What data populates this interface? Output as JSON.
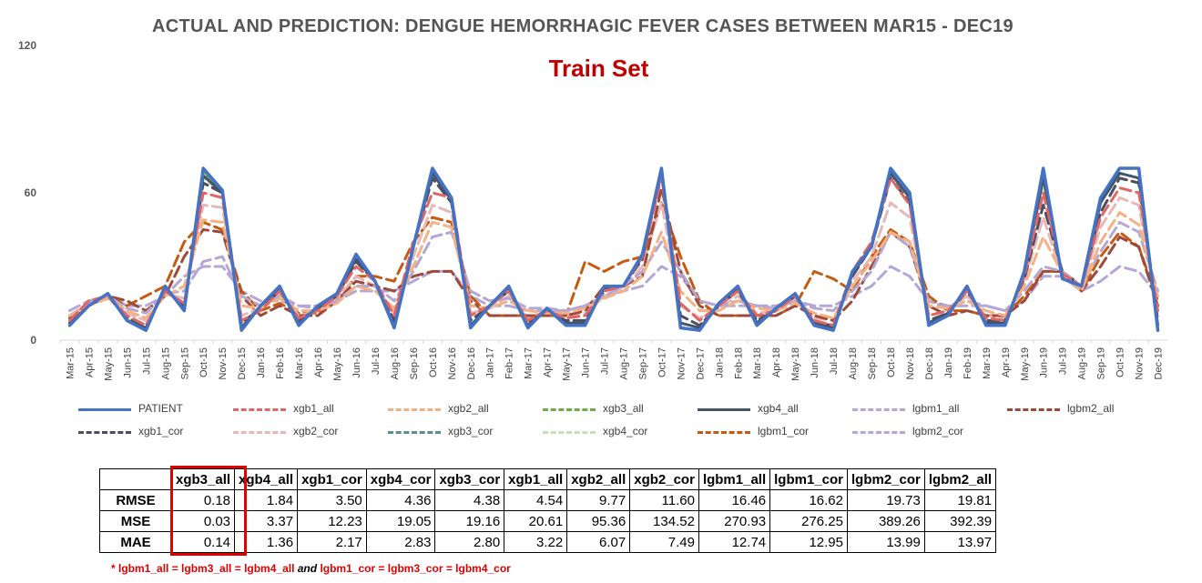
{
  "title": "ACTUAL AND PREDICTION: DENGUE HEMORRHAGIC FEVER CASES BETWEEN MAR15 - DEC19",
  "subtitle": "Train Set",
  "chart_data": {
    "type": "line",
    "title": "ACTUAL AND PREDICTION: DENGUE HEMORRHAGIC FEVER CASES BETWEEN MAR15 - DEC19",
    "ylim": [
      0,
      120
    ],
    "yticks": [
      "0",
      "60",
      "120"
    ],
    "grid": false,
    "legend_position": "bottom",
    "x": [
      "Mar-15",
      "Apr-15",
      "May-15",
      "Jun-15",
      "Jul-15",
      "Aug-15",
      "Sep-15",
      "Oct-15",
      "Nov-15",
      "Dec-15",
      "Jan-16",
      "Feb-16",
      "Mar-16",
      "Apr-16",
      "May-16",
      "Jun-16",
      "Jul-16",
      "Aug-16",
      "Sep-16",
      "Oct-16",
      "Nov-16",
      "Dec-16",
      "Jan-17",
      "Feb-17",
      "Mar-17",
      "Apr-17",
      "May-17",
      "Jun-17",
      "Jul-17",
      "Aug-17",
      "Sep-17",
      "Oct-17",
      "Nov-17",
      "Dec-17",
      "Jan-18",
      "Feb-18",
      "Mar-18",
      "Apr-18",
      "May-18",
      "Jun-18",
      "Jul-18",
      "Aug-18",
      "Sep-18",
      "Oct-18",
      "Nov-18",
      "Dec-18",
      "Jan-19",
      "Feb-19",
      "Mar-19",
      "Apr-19",
      "May-19",
      "Jun-19",
      "Jul-19",
      "Aug-19",
      "Sep-19",
      "Oct-19",
      "Nov-19",
      "Dec-19"
    ],
    "series": [
      {
        "name": "PATIENT",
        "color": "#4472c4",
        "dash": "solid",
        "width": 3.5,
        "values": [
          6,
          14,
          19,
          8,
          4,
          22,
          12,
          70,
          61,
          4,
          14,
          22,
          6,
          14,
          19,
          35,
          24,
          5,
          38,
          70,
          58,
          5,
          14,
          22,
          5,
          13,
          6,
          6,
          22,
          22,
          35,
          70,
          5,
          4,
          15,
          22,
          6,
          13,
          19,
          6,
          4,
          28,
          38,
          70,
          60,
          6,
          10,
          22,
          6,
          6,
          28,
          70,
          25,
          22,
          58,
          70,
          70,
          4
        ]
      },
      {
        "name": "xgb1_all",
        "color": "#e06666",
        "dash": "dashed",
        "width": 3,
        "values": [
          8,
          16,
          18,
          10,
          6,
          20,
          15,
          60,
          58,
          8,
          12,
          20,
          9,
          12,
          18,
          30,
          24,
          10,
          40,
          60,
          58,
          10,
          14,
          20,
          8,
          12,
          9,
          10,
          20,
          22,
          34,
          66,
          15,
          8,
          14,
          20,
          10,
          12,
          18,
          8,
          6,
          28,
          40,
          66,
          55,
          10,
          12,
          20,
          9,
          8,
          26,
          60,
          27,
          22,
          50,
          62,
          60,
          12
        ]
      },
      {
        "name": "xgb2_all",
        "color": "#f4b183",
        "dash": "dashed",
        "width": 3,
        "values": [
          10,
          14,
          17,
          12,
          9,
          18,
          22,
          49,
          48,
          14,
          13,
          17,
          12,
          12,
          15,
          22,
          20,
          13,
          30,
          48,
          46,
          14,
          13,
          16,
          12,
          11,
          11,
          13,
          17,
          20,
          26,
          44,
          20,
          12,
          12,
          16,
          13,
          12,
          15,
          11,
          9,
          22,
          32,
          44,
          40,
          14,
          13,
          16,
          12,
          10,
          22,
          42,
          27,
          20,
          40,
          52,
          47,
          18
        ]
      },
      {
        "name": "xgb3_all",
        "color": "#70ad47",
        "dash": "dashed",
        "width": 3,
        "values": [
          6,
          14,
          19,
          8,
          4,
          22,
          12,
          69,
          61,
          4,
          14,
          22,
          6,
          14,
          19,
          35,
          24,
          5,
          38,
          70,
          58,
          5,
          14,
          22,
          5,
          13,
          6,
          6,
          22,
          22,
          35,
          70,
          5,
          4,
          15,
          22,
          6,
          13,
          19,
          6,
          4,
          28,
          38,
          70,
          60,
          6,
          10,
          22,
          6,
          6,
          28,
          70,
          25,
          22,
          58,
          70,
          70,
          4
        ]
      },
      {
        "name": "xgb4_all",
        "color": "#44546a",
        "dash": "solid",
        "width": 3,
        "values": [
          6,
          14,
          19,
          8,
          5,
          21,
          13,
          67,
          60,
          5,
          14,
          21,
          7,
          13,
          19,
          33,
          24,
          6,
          38,
          68,
          57,
          6,
          14,
          21,
          6,
          13,
          7,
          7,
          21,
          22,
          34,
          69,
          7,
          5,
          14,
          21,
          7,
          13,
          18,
          7,
          5,
          27,
          38,
          68,
          58,
          7,
          11,
          21,
          7,
          7,
          27,
          66,
          26,
          22,
          56,
          68,
          66,
          6
        ]
      },
      {
        "name": "lgbm1_all",
        "color": "#b4a7d6",
        "dash": "dashed",
        "width": 3,
        "values": [
          10,
          15,
          18,
          13,
          11,
          19,
          20,
          32,
          34,
          18,
          14,
          18,
          14,
          13,
          16,
          22,
          22,
          16,
          28,
          42,
          44,
          20,
          16,
          17,
          13,
          13,
          12,
          14,
          18,
          22,
          28,
          40,
          28,
          16,
          14,
          16,
          14,
          13,
          16,
          13,
          12,
          20,
          28,
          44,
          38,
          16,
          13,
          16,
          14,
          12,
          20,
          30,
          28,
          22,
          36,
          48,
          44,
          20
        ]
      },
      {
        "name": "lgbm2_all",
        "color": "#9e4a3b",
        "dash": "dashed",
        "width": 3,
        "values": [
          9,
          14,
          18,
          16,
          12,
          18,
          34,
          45,
          44,
          18,
          10,
          14,
          10,
          10,
          16,
          24,
          22,
          20,
          26,
          28,
          28,
          16,
          10,
          10,
          10,
          10,
          10,
          12,
          22,
          22,
          26,
          62,
          28,
          14,
          10,
          10,
          10,
          10,
          14,
          10,
          8,
          16,
          30,
          44,
          38,
          14,
          10,
          12,
          10,
          10,
          16,
          28,
          28,
          20,
          30,
          42,
          38,
          14
        ]
      },
      {
        "name": "xgb1_cor",
        "color": "#4d4d60",
        "dash": "dashed",
        "width": 3,
        "values": [
          7,
          14,
          18,
          9,
          6,
          20,
          14,
          64,
          60,
          7,
          13,
          20,
          8,
          13,
          18,
          32,
          24,
          8,
          38,
          66,
          56,
          8,
          14,
          20,
          7,
          12,
          8,
          8,
          20,
          22,
          33,
          68,
          10,
          6,
          14,
          20,
          8,
          12,
          18,
          7,
          6,
          26,
          38,
          66,
          56,
          8,
          11,
          20,
          8,
          8,
          25,
          55,
          28,
          22,
          52,
          66,
          64,
          8
        ]
      },
      {
        "name": "xgb2_cor",
        "color": "#e6b8b7",
        "dash": "dashed",
        "width": 3,
        "values": [
          9,
          15,
          17,
          11,
          8,
          19,
          17,
          55,
          54,
          10,
          13,
          19,
          10,
          12,
          17,
          26,
          22,
          11,
          34,
          55,
          52,
          11,
          13,
          18,
          9,
          12,
          10,
          11,
          18,
          21,
          30,
          56,
          14,
          9,
          13,
          18,
          11,
          12,
          17,
          9,
          8,
          24,
          34,
          56,
          50,
          10,
          12,
          18,
          10,
          9,
          24,
          50,
          26,
          21,
          46,
          58,
          55,
          12
        ]
      },
      {
        "name": "xgb3_cor",
        "color": "#5b8f8f",
        "dash": "dashed",
        "width": 3,
        "values": [
          6,
          14,
          19,
          8,
          4,
          22,
          12,
          68,
          61,
          5,
          14,
          22,
          6,
          14,
          19,
          35,
          24,
          5,
          38,
          70,
          58,
          5,
          14,
          22,
          5,
          13,
          6,
          6,
          22,
          22,
          35,
          70,
          5,
          4,
          15,
          22,
          6,
          13,
          19,
          6,
          4,
          28,
          38,
          70,
          60,
          6,
          10,
          22,
          6,
          6,
          28,
          68,
          25,
          22,
          58,
          70,
          70,
          4
        ]
      },
      {
        "name": "xgb4_cor",
        "color": "#c5e0b4",
        "dash": "dashed",
        "width": 3,
        "values": [
          7,
          14,
          19,
          9,
          5,
          21,
          13,
          66,
          60,
          6,
          14,
          21,
          7,
          13,
          19,
          33,
          24,
          6,
          38,
          68,
          57,
          6,
          14,
          21,
          6,
          13,
          7,
          7,
          21,
          22,
          34,
          68,
          7,
          5,
          14,
          21,
          7,
          13,
          18,
          7,
          5,
          27,
          38,
          68,
          58,
          7,
          11,
          21,
          7,
          7,
          27,
          64,
          26,
          22,
          56,
          68,
          66,
          6
        ]
      },
      {
        "name": "lgbm1_cor",
        "color": "#c55a11",
        "dash": "dashed",
        "width": 3,
        "values": [
          9,
          15,
          18,
          14,
          18,
          22,
          40,
          48,
          45,
          20,
          12,
          15,
          11,
          11,
          16,
          26,
          26,
          24,
          40,
          50,
          48,
          18,
          10,
          10,
          10,
          10,
          10,
          32,
          28,
          32,
          34,
          56,
          34,
          16,
          10,
          10,
          10,
          10,
          14,
          28,
          25,
          20,
          34,
          45,
          40,
          18,
          12,
          12,
          10,
          10,
          18,
          28,
          28,
          20,
          34,
          44,
          38,
          16
        ]
      },
      {
        "name": "lgbm2_cor",
        "color": "#b4a7d6",
        "dash": "dashed",
        "width": 3,
        "values": [
          12,
          16,
          18,
          14,
          14,
          18,
          26,
          30,
          30,
          20,
          16,
          16,
          14,
          14,
          16,
          20,
          20,
          20,
          24,
          28,
          28,
          18,
          14,
          14,
          12,
          12,
          12,
          14,
          18,
          20,
          22,
          30,
          26,
          16,
          14,
          14,
          14,
          14,
          16,
          14,
          14,
          18,
          22,
          30,
          26,
          16,
          14,
          14,
          14,
          12,
          16,
          26,
          26,
          20,
          24,
          30,
          28,
          18
        ]
      }
    ],
    "metrics_table": {
      "columns": [
        "xgb3_all",
        "xgb4_all",
        "xgb1_cor",
        "xgb4_cor",
        "xgb3_cor",
        "xgb1_all",
        "xgb2_all",
        "xgb2_cor",
        "lgbm1_all",
        "lgbm1_cor",
        "lgbm2_cor",
        "lgbm2_all"
      ],
      "rows": [
        {
          "label": "RMSE",
          "values": [
            "0.18",
            "1.84",
            "3.50",
            "4.36",
            "4.38",
            "4.54",
            "9.77",
            "11.60",
            "16.46",
            "16.62",
            "19.73",
            "19.81"
          ]
        },
        {
          "label": "MSE",
          "values": [
            "0.03",
            "3.37",
            "12.23",
            "19.05",
            "19.16",
            "20.61",
            "95.36",
            "134.52",
            "270.93",
            "276.25",
            "389.26",
            "392.39"
          ]
        },
        {
          "label": "MAE",
          "values": [
            "0.14",
            "1.36",
            "2.17",
            "2.83",
            "2.80",
            "3.22",
            "6.07",
            "7.49",
            "12.74",
            "12.95",
            "13.99",
            "13.97"
          ]
        }
      ],
      "highlighted_column": "xgb3_all",
      "highlight_color": "#e00000"
    }
  },
  "footnote": {
    "part1": "* lgbm1_all = lgbm3_all = lgbm4_all",
    "and": " and ",
    "part2": "lgbm1_cor = lgbm3_cor = lgbm4_cor"
  }
}
